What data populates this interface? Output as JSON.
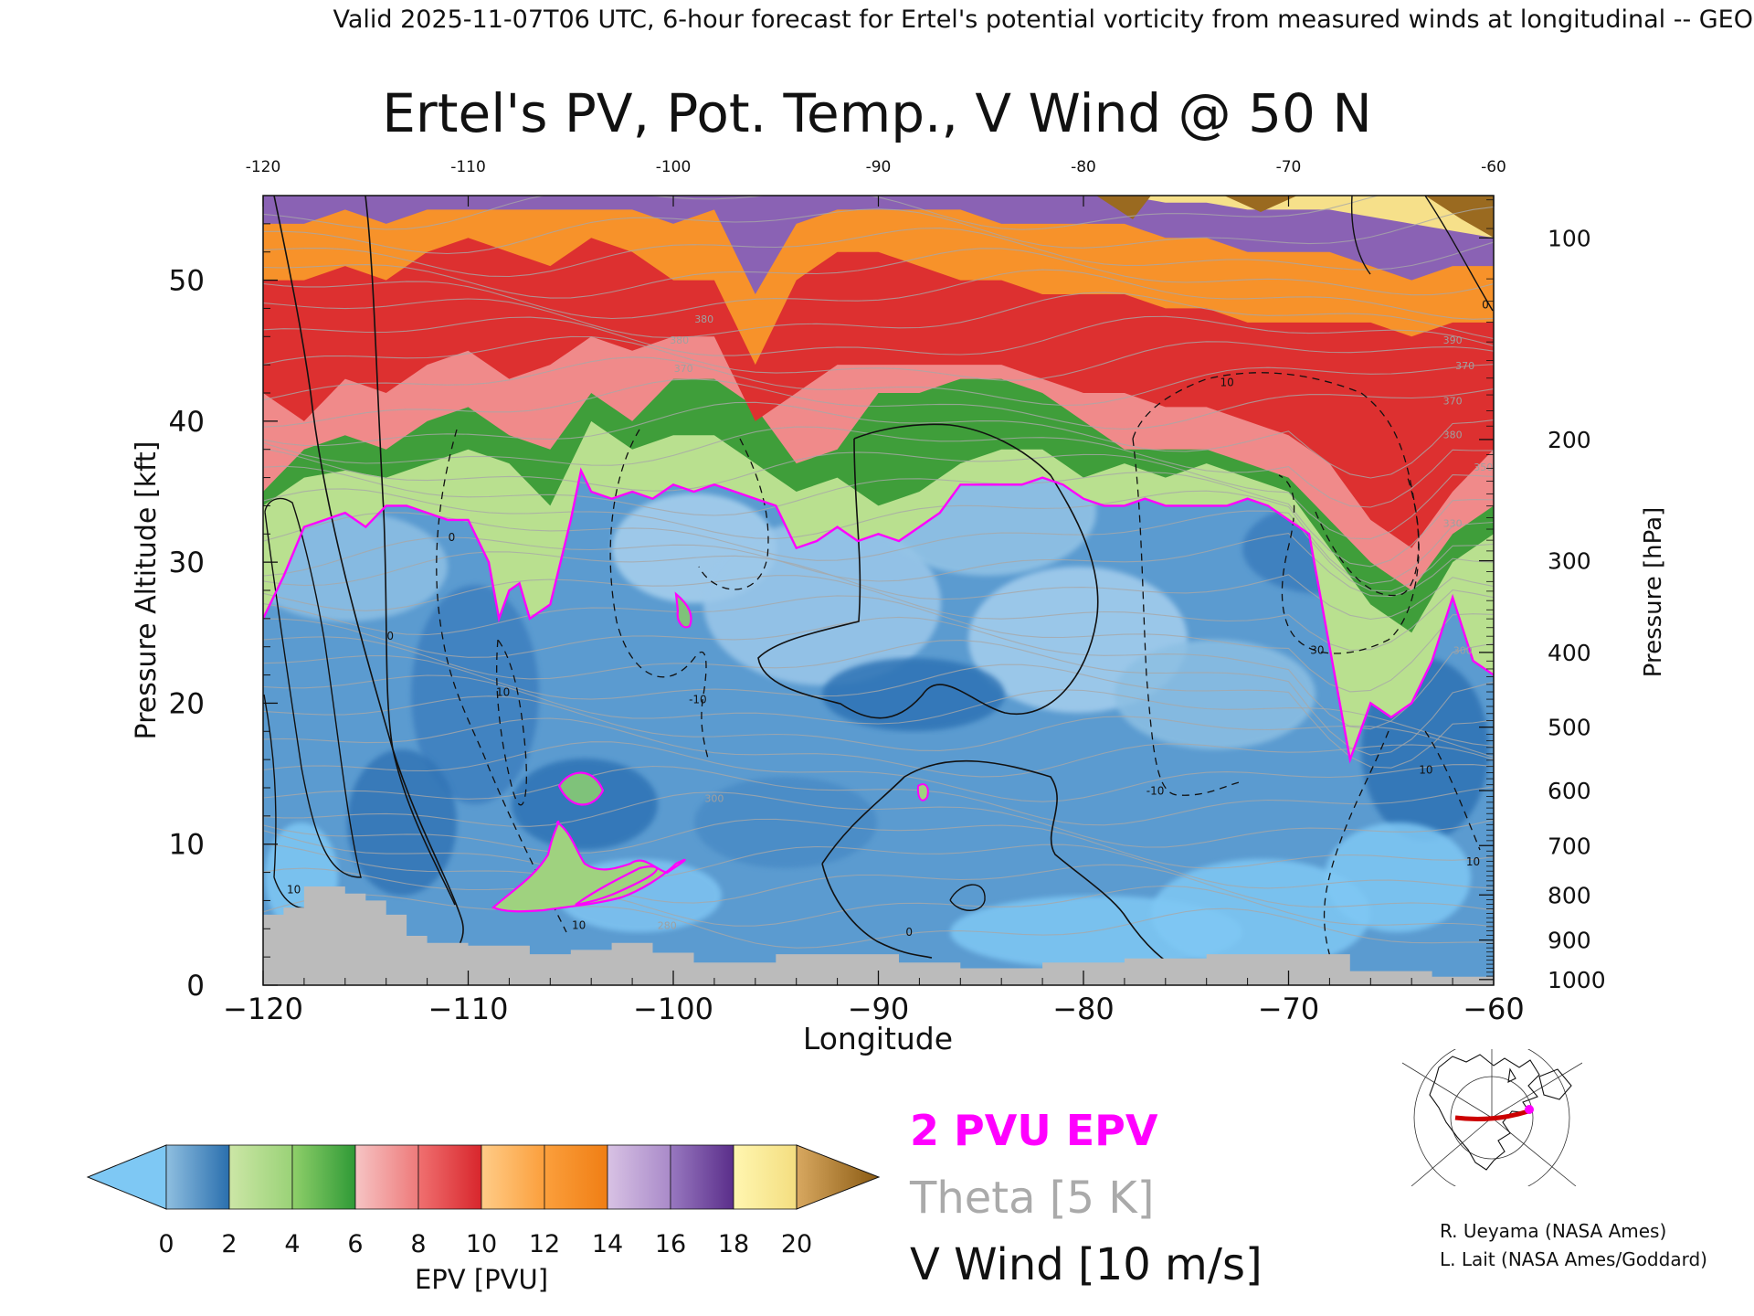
{
  "header": {
    "valid_line": "Valid 2025-11-07T06 UTC, 6-hour forecast for Ertel's potential vorticity from measured winds at longitudinal -- GEO"
  },
  "chart_data": {
    "type": "heatmap",
    "title": "Ertel's PV, Pot. Temp., V Wind @ 50 N",
    "xlabel": "Longitude",
    "ylabel_left": "Pressure Altitude [kft]",
    "ylabel_right": "Pressure [hPa]",
    "xlim": [
      -120,
      -60
    ],
    "ylim_kft": [
      0,
      56
    ],
    "x_ticks": [
      -120,
      -110,
      -100,
      -90,
      -80,
      -70,
      -60
    ],
    "x_tick_labels": [
      "−120",
      "−110",
      "−100",
      "−90",
      "−80",
      "−70",
      "−60"
    ],
    "x_top_tick_labels": [
      "-120",
      "-110",
      "-100",
      "-90",
      "-80",
      "-70",
      "-60"
    ],
    "y_ticks_kft": [
      0,
      10,
      20,
      30,
      40,
      50
    ],
    "y_tick_labels": [
      "0",
      "10",
      "20",
      "30",
      "40",
      "50"
    ],
    "pressure_ticks": [
      {
        "hpa": 100,
        "kft": 53.0,
        "label": "100"
      },
      {
        "hpa": 200,
        "kft": 38.7,
        "label": "200"
      },
      {
        "hpa": 300,
        "kft": 30.1,
        "label": "300"
      },
      {
        "hpa": 400,
        "kft": 23.6,
        "label": "400"
      },
      {
        "hpa": 500,
        "kft": 18.3,
        "label": "500"
      },
      {
        "hpa": 600,
        "kft": 13.8,
        "label": "600"
      },
      {
        "hpa": 700,
        "kft": 9.9,
        "label": "700"
      },
      {
        "hpa": 800,
        "kft": 6.4,
        "label": "800"
      },
      {
        "hpa": 900,
        "kft": 3.2,
        "label": "900"
      },
      {
        "hpa": 1000,
        "kft": 0.4,
        "label": "1000"
      }
    ],
    "colorbar": {
      "label": "EPV [PVU]",
      "ticks": [
        0,
        2,
        4,
        6,
        8,
        10,
        12,
        14,
        16,
        18,
        20
      ],
      "tick_labels": [
        "0",
        "2",
        "4",
        "6",
        "8",
        "10",
        "12",
        "14",
        "16",
        "18",
        "20"
      ],
      "below_color": "#7ec8f4",
      "above_color": "#8a5a12",
      "segments": [
        [
          "#8fbfe0",
          "#2a6fae"
        ],
        [
          "#cce6a6",
          "#9ad277"
        ],
        [
          "#8fcf6a",
          "#2f9a36"
        ],
        [
          "#f6c4c4",
          "#ee7a7a"
        ],
        [
          "#f07070",
          "#d8262c"
        ],
        [
          "#ffcc88",
          "#fb9f3c"
        ],
        [
          "#fb9f3c",
          "#f07e14"
        ],
        [
          "#d8c2e4",
          "#a98ac9"
        ],
        [
          "#9878c0",
          "#5a2e8a"
        ],
        [
          "#fff6b0",
          "#f4de80"
        ],
        [
          "#d8a860",
          "#a87228"
        ]
      ]
    },
    "legend": [
      {
        "label": "2 PVU EPV",
        "color": "#ff00ff"
      },
      {
        "label": "Theta [5 K]",
        "color": "#aaaaaa"
      },
      {
        "label": "V Wind [10 m/s]",
        "color": "#111111"
      }
    ],
    "pv2_tropopause_kft": [
      [
        -120,
        26
      ],
      [
        -119,
        29
      ],
      [
        -118,
        32.5
      ],
      [
        -117,
        33
      ],
      [
        -116,
        33.5
      ],
      [
        -115,
        32.5
      ],
      [
        -114,
        34
      ],
      [
        -113,
        34
      ],
      [
        -112,
        33.5
      ],
      [
        -111,
        33
      ],
      [
        -110,
        33
      ],
      [
        -109,
        30
      ],
      [
        -108.5,
        26
      ],
      [
        -108,
        28
      ],
      [
        -107.5,
        28.5
      ],
      [
        -107,
        26
      ],
      [
        -106,
        27
      ],
      [
        -105,
        33
      ],
      [
        -104.5,
        36.5
      ],
      [
        -104,
        35
      ],
      [
        -103,
        34.5
      ],
      [
        -102,
        35
      ],
      [
        -101,
        34.5
      ],
      [
        -100,
        35.5
      ],
      [
        -99,
        35
      ],
      [
        -98,
        35.5
      ],
      [
        -97,
        35
      ],
      [
        -96,
        34.5
      ],
      [
        -95,
        34
      ],
      [
        -94,
        31
      ],
      [
        -93,
        31.5
      ],
      [
        -92,
        32.5
      ],
      [
        -91,
        31.5
      ],
      [
        -90,
        32
      ],
      [
        -89,
        31.5
      ],
      [
        -88,
        32.5
      ],
      [
        -87,
        33.5
      ],
      [
        -86,
        35.5
      ],
      [
        -85,
        35.5
      ],
      [
        -84,
        35.5
      ],
      [
        -83,
        35.5
      ],
      [
        -82,
        36
      ],
      [
        -81,
        35.5
      ],
      [
        -80,
        34.5
      ],
      [
        -79,
        34
      ],
      [
        -78,
        34
      ],
      [
        -77,
        34.5
      ],
      [
        -76,
        34
      ],
      [
        -75,
        34
      ],
      [
        -74,
        34
      ],
      [
        -73,
        34
      ],
      [
        -72,
        34.5
      ],
      [
        -71,
        34
      ],
      [
        -70,
        33
      ],
      [
        -69,
        32
      ],
      [
        -68.5,
        28
      ],
      [
        -68,
        24
      ],
      [
        -67.5,
        20
      ],
      [
        -67,
        16
      ],
      [
        -66.5,
        18
      ],
      [
        -66,
        20
      ],
      [
        -65,
        19
      ],
      [
        -64,
        20
      ],
      [
        -63,
        23
      ],
      [
        -62,
        27.5
      ],
      [
        -61,
        23
      ],
      [
        -60,
        22
      ]
    ],
    "pv_top_levels_kft": {
      "x": [
        -120,
        -118,
        -116,
        -114,
        -112,
        -110,
        -108,
        -106,
        -104,
        -102,
        -100,
        -98,
        -96,
        -94,
        -92,
        -90,
        -88,
        -86,
        -84,
        -82,
        -80,
        -78,
        -76,
        -74,
        -72,
        -70,
        -68,
        -66,
        -64,
        -62,
        -60
      ],
      "pv4": [
        34,
        36,
        36.5,
        36,
        37,
        38,
        37,
        34,
        40,
        38,
        39,
        39,
        37,
        35,
        36,
        34,
        35,
        37,
        38,
        38,
        36,
        37,
        36,
        37,
        36,
        35,
        31,
        27,
        25,
        30,
        32
      ],
      "pv6": [
        35,
        38,
        39,
        38,
        40,
        41,
        39,
        38,
        42,
        40,
        43,
        43,
        41,
        37,
        38,
        42,
        42,
        43,
        43,
        42,
        40,
        38,
        38,
        38,
        37,
        36,
        33,
        30,
        28,
        32,
        34
      ],
      "pv8": [
        42,
        40,
        43,
        42,
        44,
        45,
        43,
        44,
        46,
        45,
        46,
        46,
        40,
        42,
        44,
        44,
        44,
        44,
        44,
        43,
        42,
        42,
        41,
        41,
        40,
        39,
        37,
        33,
        31,
        35,
        38
      ],
      "pv12": [
        50,
        50,
        51,
        50,
        52,
        53,
        52,
        51,
        53,
        52,
        50,
        50,
        44,
        50,
        52,
        52,
        51,
        50,
        50,
        49,
        49,
        49,
        48,
        48,
        47,
        47,
        47,
        47,
        46,
        47,
        47
      ],
      "pv14": [
        54,
        54,
        55,
        54,
        55,
        55,
        55,
        55,
        55,
        55,
        54,
        55,
        49,
        54,
        55,
        55,
        55,
        55,
        54,
        54,
        54,
        54,
        53,
        53,
        52,
        52,
        52,
        51,
        50,
        51,
        51
      ],
      "pv18": [
        56,
        56,
        56,
        56,
        56,
        56,
        56,
        56,
        56,
        56,
        56,
        56,
        56,
        56,
        56,
        56,
        56,
        56,
        56,
        56,
        56,
        56,
        55.5,
        55.5,
        55,
        55,
        55,
        54.5,
        54,
        53.5,
        53
      ]
    },
    "terrain_kft": [
      [
        -120,
        5
      ],
      [
        -119,
        5
      ],
      [
        -119,
        5.5
      ],
      [
        -118,
        5.5
      ],
      [
        -118,
        7
      ],
      [
        -116,
        7
      ],
      [
        -116,
        6.5
      ],
      [
        -115,
        6.5
      ],
      [
        -115,
        6
      ],
      [
        -114,
        6
      ],
      [
        -114,
        5
      ],
      [
        -113,
        5
      ],
      [
        -113,
        3.5
      ],
      [
        -112,
        3.5
      ],
      [
        -112,
        3
      ],
      [
        -110,
        3
      ],
      [
        -110,
        2.8
      ],
      [
        -107,
        2.8
      ],
      [
        -107,
        2.2
      ],
      [
        -105,
        2.2
      ],
      [
        -105,
        2.5
      ],
      [
        -103,
        2.5
      ],
      [
        -103,
        3
      ],
      [
        -101,
        3
      ],
      [
        -101,
        2.3
      ],
      [
        -99,
        2.3
      ],
      [
        -99,
        1.6
      ],
      [
        -95,
        1.6
      ],
      [
        -95,
        2.2
      ],
      [
        -89,
        2.2
      ],
      [
        -89,
        1.6
      ],
      [
        -86,
        1.6
      ],
      [
        -86,
        1.2
      ],
      [
        -82,
        1.2
      ],
      [
        -82,
        1.6
      ],
      [
        -78,
        1.6
      ],
      [
        -78,
        1.9
      ],
      [
        -74,
        1.9
      ],
      [
        -74,
        2.2
      ],
      [
        -67,
        2.2
      ],
      [
        -67,
        1
      ],
      [
        -63,
        1
      ],
      [
        -63,
        0.6
      ],
      [
        -60,
        0.6
      ]
    ],
    "wind_contour_labels": [
      {
        "x": -113.8,
        "kft": 24.5,
        "text": "0"
      },
      {
        "x": -110.8,
        "kft": 31.5,
        "text": "0"
      },
      {
        "x": -108.3,
        "kft": 20.5,
        "text": "10"
      },
      {
        "x": -98.8,
        "kft": 20,
        "text": "-10"
      },
      {
        "x": -104.6,
        "kft": 4,
        "text": "10"
      },
      {
        "x": -88.5,
        "kft": 3.5,
        "text": "0"
      },
      {
        "x": -76.5,
        "kft": 13.5,
        "text": "-10"
      },
      {
        "x": -63.3,
        "kft": 15,
        "text": "10"
      },
      {
        "x": -61,
        "kft": 8.5,
        "text": "10"
      },
      {
        "x": -73,
        "kft": 42.5,
        "text": "10"
      },
      {
        "x": -68.6,
        "kft": 23.5,
        "text": "30"
      },
      {
        "x": -118.5,
        "kft": 6.5,
        "text": "10"
      },
      {
        "x": -60.4,
        "kft": 48,
        "text": "0"
      }
    ],
    "theta_labels": [
      {
        "x": -98.5,
        "kft": 47,
        "text": "380"
      },
      {
        "x": -99.7,
        "kft": 45.5,
        "text": "380"
      },
      {
        "x": -99.5,
        "kft": 43.5,
        "text": "370"
      },
      {
        "x": -62,
        "kft": 45.5,
        "text": "390"
      },
      {
        "x": -61.4,
        "kft": 43.7,
        "text": "370"
      },
      {
        "x": -62,
        "kft": 41.2,
        "text": "370"
      },
      {
        "x": -62,
        "kft": 38.8,
        "text": "380"
      },
      {
        "x": -60.5,
        "kft": 36.5,
        "text": "350"
      },
      {
        "x": -62,
        "kft": 32.5,
        "text": "330"
      },
      {
        "x": -61.5,
        "kft": 23.5,
        "text": "300"
      },
      {
        "x": -98,
        "kft": 13,
        "text": "300"
      },
      {
        "x": -100.3,
        "kft": 4,
        "text": "280"
      }
    ]
  },
  "credits": {
    "line1": "R. Ueyama (NASA Ames)",
    "line2": "L. Lait (NASA Ames/Goddard)"
  },
  "inset_map": {
    "track_color": "#cc0000",
    "marker_color": "#ff00ff"
  }
}
